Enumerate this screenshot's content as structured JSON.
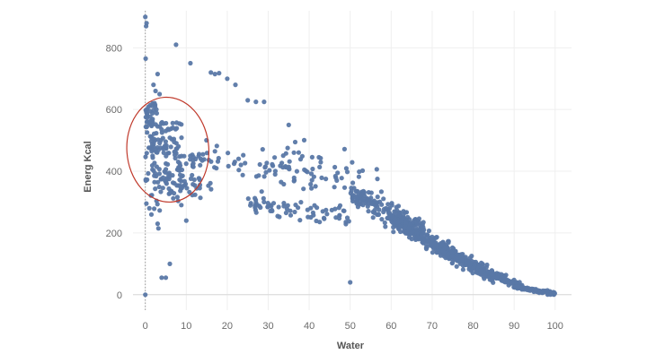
{
  "chart_data": {
    "type": "scatter",
    "xlabel": "Water",
    "ylabel": "Energ Kcal",
    "xlim": [
      -3,
      104
    ],
    "ylim": [
      -50,
      920
    ],
    "x_ticks": [
      0,
      10,
      20,
      30,
      40,
      50,
      60,
      70,
      80,
      90,
      100
    ],
    "y_ticks": [
      0,
      200,
      400,
      600,
      800
    ],
    "grid": true,
    "point_color": "#5a78a6",
    "annotation_color": "#c0392b",
    "annotation": {
      "type": "ellipse",
      "center": [
        5.5,
        470
      ],
      "radii": [
        10,
        170
      ]
    },
    "highlight_points": [
      [
        0,
        900
      ],
      [
        0.3,
        880
      ],
      [
        0.2,
        870
      ],
      [
        0.1,
        765
      ],
      [
        7.5,
        810
      ],
      [
        11,
        750
      ],
      [
        16,
        720
      ],
      [
        17,
        715
      ],
      [
        18,
        718
      ],
      [
        20,
        700
      ],
      [
        22,
        680
      ],
      [
        25,
        630
      ],
      [
        27,
        625
      ],
      [
        29,
        625
      ],
      [
        35,
        550
      ],
      [
        3,
        715
      ],
      [
        2,
        680
      ],
      [
        2.5,
        660
      ],
      [
        3.5,
        650
      ],
      [
        0,
        0
      ],
      [
        50,
        40
      ],
      [
        4,
        55
      ],
      [
        5,
        55
      ],
      [
        6,
        100
      ],
      [
        3,
        230
      ],
      [
        3.2,
        215
      ],
      [
        1,
        280
      ],
      [
        1.5,
        260
      ],
      [
        10,
        240
      ]
    ],
    "clusters": [
      {
        "xr": [
          0,
          3
        ],
        "yr": [
          360,
          630
        ],
        "n": 70
      },
      {
        "xr": [
          2,
          9
        ],
        "yr": [
          320,
          560
        ],
        "n": 90
      },
      {
        "xr": [
          5,
          14
        ],
        "yr": [
          300,
          460
        ],
        "n": 50
      },
      {
        "xr": [
          0,
          12
        ],
        "yr": [
          270,
          330
        ],
        "n": 12
      },
      {
        "xr": [
          10,
          17
        ],
        "yr": [
          330,
          470
        ],
        "n": 15
      }
    ],
    "bands": [
      {
        "x0": 13,
        "x1": 50,
        "y0": 450,
        "y1": 380,
        "s": 55,
        "n": 70
      },
      {
        "x0": 25,
        "x1": 50,
        "y0": 300,
        "y1": 250,
        "s": 35,
        "n": 70
      },
      {
        "x0": 33,
        "x1": 58,
        "y0": 460,
        "y1": 330,
        "s": 70,
        "n": 35
      },
      {
        "x0": 50,
        "x1": 68,
        "y0": 330,
        "y1": 200,
        "s": 35,
        "n": 150
      },
      {
        "x0": 60,
        "x1": 75,
        "y0": 250,
        "y1": 130,
        "s": 30,
        "n": 230
      },
      {
        "x0": 72,
        "x1": 85,
        "y0": 150,
        "y1": 60,
        "s": 22,
        "n": 200
      },
      {
        "x0": 84,
        "x1": 92,
        "y0": 70,
        "y1": 25,
        "s": 12,
        "n": 110
      },
      {
        "x0": 90,
        "x1": 100,
        "y0": 25,
        "y1": 3,
        "s": 6,
        "n": 80
      }
    ]
  }
}
